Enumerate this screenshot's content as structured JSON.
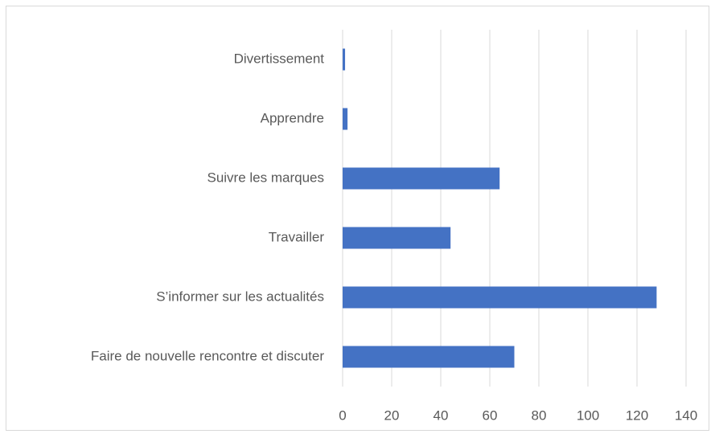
{
  "chart_data": {
    "type": "bar",
    "orientation": "horizontal",
    "categories": [
      "Divertissement",
      "Apprendre",
      "Suivre les marques",
      "Travailler",
      "S’informer sur les actualités",
      "Faire de nouvelle rencontre et discuter"
    ],
    "values": [
      1,
      2,
      64,
      44,
      128,
      70
    ],
    "color": "#4472c4",
    "xlim": [
      0,
      140
    ],
    "xticks": [
      0,
      20,
      40,
      60,
      80,
      100,
      120,
      140
    ],
    "grid": true
  }
}
